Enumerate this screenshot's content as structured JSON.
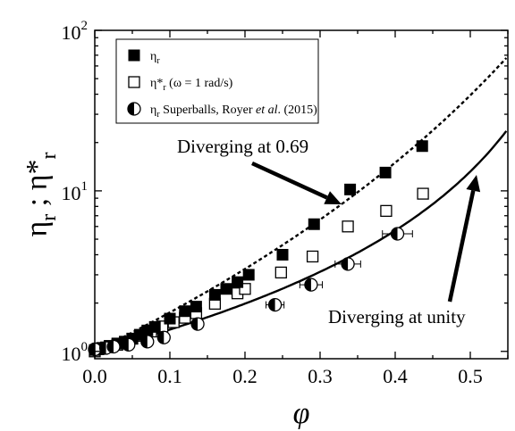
{
  "chart_data": {
    "type": "scatter",
    "xlabel": "φ",
    "ylabel": {
      "eta": "η",
      "sub": "r",
      "sep": " ; ",
      "eta_star": "η*",
      "sub2": "r"
    },
    "xlim": [
      0.0,
      0.55
    ],
    "ylim": [
      0.9,
      100
    ],
    "yscale": "log",
    "xticks": [
      "0.0",
      "0.1",
      "0.2",
      "0.3",
      "0.4",
      "0.5"
    ],
    "xtick_values": [
      0.0,
      0.1,
      0.2,
      0.3,
      0.4,
      0.5
    ],
    "yticks": [
      {
        "value": 1,
        "base": "10",
        "exp": "0"
      },
      {
        "value": 10,
        "base": "10",
        "exp": "1"
      },
      {
        "value": 100,
        "base": "10",
        "exp": "2"
      }
    ],
    "legend_position": "top-left",
    "series": [
      {
        "legend": {
          "main": "η",
          "sub": "r"
        },
        "marker": "filled-square",
        "x": [
          0.0,
          0.005,
          0.01,
          0.015,
          0.02,
          0.03,
          0.04,
          0.05,
          0.06,
          0.07,
          0.08,
          0.1,
          0.12,
          0.135,
          0.16,
          0.175,
          0.19,
          0.205,
          0.25,
          0.292,
          0.34,
          0.387,
          0.436
        ],
        "y": [
          1.02,
          1.03,
          1.04,
          1.06,
          1.08,
          1.12,
          1.15,
          1.2,
          1.27,
          1.35,
          1.42,
          1.6,
          1.78,
          1.9,
          2.25,
          2.45,
          2.7,
          3.0,
          4.0,
          6.2,
          10.2,
          13.0,
          19.0
        ]
      },
      {
        "legend": {
          "main": "η*",
          "sub": "r",
          "rest": " (ω = 1 rad/s)"
        },
        "marker": "open-square",
        "x": [
          0.0,
          0.01,
          0.02,
          0.03,
          0.04,
          0.05,
          0.06,
          0.075,
          0.09,
          0.105,
          0.12,
          0.135,
          0.16,
          0.19,
          0.2,
          0.248,
          0.29,
          0.337,
          0.388,
          0.437
        ],
        "y": [
          1.0,
          1.05,
          1.08,
          1.1,
          1.14,
          1.2,
          1.25,
          1.33,
          1.43,
          1.52,
          1.62,
          1.73,
          1.98,
          2.3,
          2.45,
          3.1,
          3.9,
          6.0,
          7.5,
          9.6
        ]
      },
      {
        "legend": {
          "main": "η",
          "sub": "r",
          "rest_pre": " Superballs, Royer ",
          "rest_ital": "et al",
          "rest_post": ". (2015)"
        },
        "marker": "half-filled-circle",
        "x": [
          0.0,
          0.015,
          0.025,
          0.045,
          0.07,
          0.092,
          0.137,
          0.24,
          0.288,
          0.337,
          0.403
        ],
        "y": [
          1.03,
          1.05,
          1.07,
          1.1,
          1.15,
          1.22,
          1.48,
          1.95,
          2.6,
          3.5,
          5.4
        ],
        "xerr": [
          0.0,
          0.0,
          0.0,
          0.0,
          0.0,
          0.0,
          0.0,
          0.012,
          0.015,
          0.017,
          0.02
        ]
      }
    ],
    "fits": [
      {
        "style": "solid",
        "phi_max": 0.69
      },
      {
        "style": "dotted",
        "phi_max": 1.0
      }
    ],
    "annotations": [
      {
        "text": "Diverging at 0.69"
      },
      {
        "text": "Diverging at unity"
      }
    ]
  }
}
